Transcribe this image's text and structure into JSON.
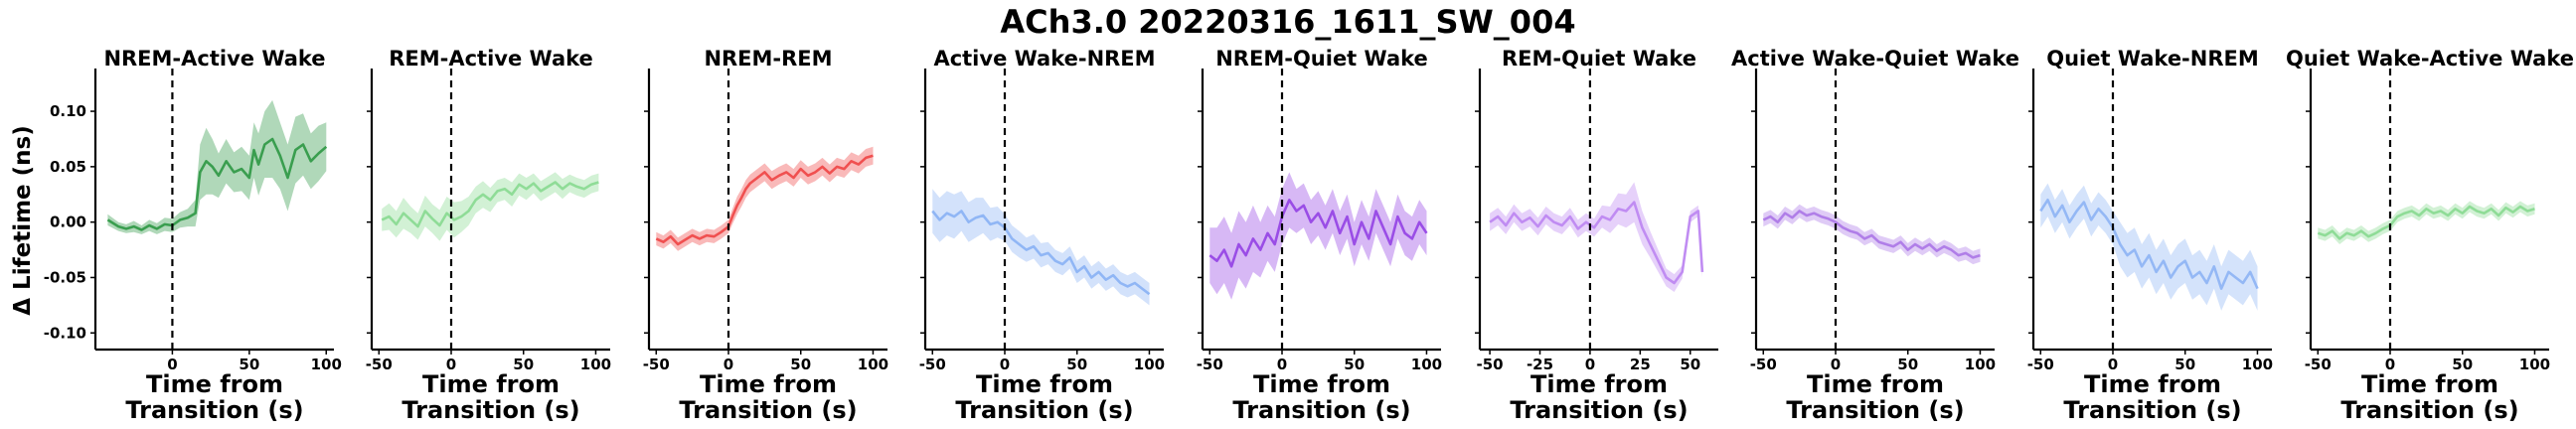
{
  "figure": {
    "suptitle": "ACh3.0 20220316_1611_SW_004",
    "ylabel": "Δ Lifetime (ns)",
    "xlabel_line1": "Time from",
    "xlabel_line2": "Transition (s)"
  },
  "chart_data": [
    {
      "type": "line",
      "title": "NREM-Active Wake",
      "color": "#3a9e4f",
      "xlim": [
        -50,
        105
      ],
      "ylim": [
        -0.115,
        0.135
      ],
      "xticks": [
        "0",
        "50",
        "100"
      ],
      "yticks": [
        "0.10",
        "0.05",
        "0.00",
        "-0.05",
        "-0.10"
      ],
      "x": [
        -42,
        -35,
        -30,
        -25,
        -20,
        -15,
        -10,
        -5,
        0,
        5,
        10,
        15,
        18,
        22,
        26,
        30,
        35,
        40,
        45,
        50,
        53,
        56,
        60,
        65,
        70,
        75,
        80,
        85,
        90,
        95,
        100
      ],
      "mean": [
        0.002,
        -0.004,
        -0.006,
        -0.004,
        -0.007,
        -0.003,
        -0.006,
        -0.002,
        -0.003,
        0.002,
        0.004,
        0.008,
        0.045,
        0.055,
        0.05,
        0.042,
        0.055,
        0.045,
        0.048,
        0.04,
        0.065,
        0.052,
        0.07,
        0.075,
        0.06,
        0.04,
        0.065,
        0.07,
        0.055,
        0.062,
        0.068
      ],
      "err": [
        0.005,
        0.004,
        0.004,
        0.005,
        0.004,
        0.005,
        0.005,
        0.006,
        0.006,
        0.007,
        0.008,
        0.012,
        0.025,
        0.03,
        0.025,
        0.02,
        0.02,
        0.018,
        0.02,
        0.02,
        0.025,
        0.028,
        0.03,
        0.035,
        0.03,
        0.03,
        0.03,
        0.028,
        0.025,
        0.025,
        0.022
      ]
    },
    {
      "type": "line",
      "title": "REM-Active Wake",
      "color": "#8fdc97",
      "xlim": [
        -55,
        110
      ],
      "ylim": [
        -0.115,
        0.135
      ],
      "xticks": [
        "-50",
        "0",
        "50",
        "100"
      ],
      "yticks": [],
      "x": [
        -48,
        -43,
        -38,
        -33,
        -28,
        -23,
        -18,
        -13,
        -8,
        -3,
        2,
        7,
        12,
        17,
        22,
        27,
        32,
        37,
        42,
        47,
        52,
        57,
        62,
        67,
        72,
        77,
        82,
        87,
        92,
        97,
        102
      ],
      "mean": [
        0.002,
        0.005,
        -0.002,
        0.008,
        0.002,
        -0.004,
        0.01,
        0.003,
        -0.003,
        0.008,
        0.002,
        0.005,
        0.01,
        0.02,
        0.025,
        0.02,
        0.028,
        0.03,
        0.025,
        0.034,
        0.03,
        0.035,
        0.028,
        0.032,
        0.036,
        0.03,
        0.035,
        0.032,
        0.03,
        0.034,
        0.036
      ],
      "err": [
        0.01,
        0.012,
        0.012,
        0.014,
        0.012,
        0.012,
        0.014,
        0.013,
        0.014,
        0.015,
        0.016,
        0.014,
        0.013,
        0.012,
        0.012,
        0.011,
        0.01,
        0.01,
        0.011,
        0.01,
        0.01,
        0.009,
        0.009,
        0.009,
        0.009,
        0.009,
        0.008,
        0.008,
        0.008,
        0.008,
        0.008
      ]
    },
    {
      "type": "line",
      "title": "NREM-REM",
      "color": "#f05050",
      "xlim": [
        -55,
        110
      ],
      "ylim": [
        -0.115,
        0.135
      ],
      "xticks": [
        "-50",
        "0",
        "50",
        "100"
      ],
      "yticks": [],
      "x": [
        -50,
        -45,
        -40,
        -35,
        -30,
        -25,
        -20,
        -15,
        -10,
        -5,
        0,
        3,
        6,
        9,
        12,
        15,
        20,
        25,
        30,
        35,
        40,
        45,
        50,
        55,
        60,
        65,
        70,
        75,
        80,
        85,
        90,
        95,
        100
      ],
      "mean": [
        -0.015,
        -0.018,
        -0.013,
        -0.02,
        -0.016,
        -0.012,
        -0.015,
        -0.012,
        -0.013,
        -0.009,
        -0.004,
        0.006,
        0.015,
        0.022,
        0.03,
        0.035,
        0.04,
        0.045,
        0.038,
        0.042,
        0.045,
        0.04,
        0.048,
        0.042,
        0.045,
        0.05,
        0.044,
        0.05,
        0.048,
        0.055,
        0.052,
        0.058,
        0.06
      ],
      "err": [
        0.006,
        0.006,
        0.006,
        0.006,
        0.006,
        0.006,
        0.006,
        0.006,
        0.006,
        0.006,
        0.006,
        0.007,
        0.008,
        0.008,
        0.008,
        0.008,
        0.008,
        0.008,
        0.008,
        0.008,
        0.008,
        0.008,
        0.008,
        0.008,
        0.008,
        0.008,
        0.008,
        0.008,
        0.008,
        0.008,
        0.008,
        0.008,
        0.008
      ]
    },
    {
      "type": "line",
      "title": "Active Wake-NREM",
      "color": "#90b6f5",
      "xlim": [
        -55,
        110
      ],
      "ylim": [
        -0.115,
        0.135
      ],
      "xticks": [
        "-50",
        "0",
        "50",
        "100"
      ],
      "yticks": [],
      "x": [
        -50,
        -45,
        -40,
        -35,
        -30,
        -25,
        -20,
        -15,
        -10,
        -5,
        0,
        5,
        10,
        15,
        20,
        25,
        30,
        35,
        40,
        45,
        50,
        55,
        60,
        65,
        70,
        75,
        80,
        85,
        90,
        95,
        100
      ],
      "mean": [
        0.01,
        0.002,
        0.008,
        0.005,
        0.01,
        0.0,
        0.004,
        0.006,
        -0.002,
        0.0,
        -0.005,
        -0.015,
        -0.02,
        -0.025,
        -0.022,
        -0.03,
        -0.028,
        -0.035,
        -0.038,
        -0.032,
        -0.045,
        -0.04,
        -0.05,
        -0.045,
        -0.052,
        -0.048,
        -0.055,
        -0.058,
        -0.055,
        -0.06,
        -0.065
      ],
      "err": [
        0.02,
        0.02,
        0.02,
        0.02,
        0.018,
        0.018,
        0.018,
        0.016,
        0.015,
        0.014,
        0.012,
        0.012,
        0.012,
        0.011,
        0.011,
        0.011,
        0.01,
        0.01,
        0.01,
        0.01,
        0.01,
        0.01,
        0.01,
        0.01,
        0.01,
        0.01,
        0.01,
        0.01,
        0.01,
        0.01,
        0.01
      ]
    },
    {
      "type": "line",
      "title": "NREM-Quiet Wake",
      "color": "#9a4de6",
      "xlim": [
        -55,
        110
      ],
      "ylim": [
        -0.115,
        0.135
      ],
      "xticks": [
        "-50",
        "0",
        "50",
        "100"
      ],
      "yticks": [],
      "x": [
        -50,
        -45,
        -40,
        -35,
        -30,
        -25,
        -20,
        -15,
        -10,
        -5,
        0,
        5,
        10,
        15,
        20,
        25,
        30,
        35,
        40,
        45,
        50,
        55,
        60,
        65,
        70,
        75,
        80,
        85,
        90,
        95,
        100
      ],
      "mean": [
        -0.03,
        -0.035,
        -0.025,
        -0.04,
        -0.02,
        -0.03,
        -0.015,
        -0.025,
        -0.01,
        -0.02,
        0.005,
        0.02,
        0.01,
        0.015,
        0.0,
        0.008,
        -0.005,
        0.01,
        -0.01,
        0.005,
        -0.02,
        0.0,
        -0.015,
        0.01,
        -0.005,
        -0.02,
        0.005,
        -0.01,
        -0.015,
        0.0,
        -0.01
      ],
      "err": [
        0.025,
        0.03,
        0.03,
        0.03,
        0.03,
        0.03,
        0.03,
        0.025,
        0.025,
        0.025,
        0.025,
        0.025,
        0.02,
        0.02,
        0.02,
        0.02,
        0.02,
        0.02,
        0.02,
        0.02,
        0.02,
        0.02,
        0.02,
        0.02,
        0.02,
        0.02,
        0.02,
        0.02,
        0.02,
        0.02,
        0.02
      ]
    },
    {
      "type": "line",
      "title": "REM-Quiet Wake",
      "color": "#c08cf2",
      "xlim": [
        -55,
        64
      ],
      "ylim": [
        -0.115,
        0.135
      ],
      "xticks": [
        "-50",
        "-25",
        "0",
        "25",
        "50"
      ],
      "yticks": [],
      "x": [
        -50,
        -46,
        -42,
        -38,
        -34,
        -30,
        -26,
        -22,
        -18,
        -14,
        -10,
        -6,
        -2,
        2,
        6,
        10,
        14,
        18,
        22,
        26,
        30,
        34,
        38,
        42,
        46,
        50,
        54,
        56
      ],
      "mean": [
        0.0,
        0.005,
        -0.003,
        0.008,
        0.0,
        0.004,
        -0.004,
        0.006,
        0.0,
        -0.003,
        0.005,
        -0.006,
        0.0,
        -0.005,
        0.005,
        0.002,
        0.012,
        0.01,
        0.018,
        -0.005,
        -0.02,
        -0.035,
        -0.05,
        -0.055,
        -0.045,
        0.005,
        0.01,
        -0.045
      ],
      "err": [
        0.008,
        0.008,
        0.008,
        0.008,
        0.008,
        0.008,
        0.008,
        0.008,
        0.008,
        0.008,
        0.008,
        0.008,
        0.008,
        0.008,
        0.01,
        0.012,
        0.014,
        0.015,
        0.018,
        0.015,
        0.012,
        0.01,
        0.008,
        0.008,
        0.006,
        0.005,
        0.005,
        0.005
      ]
    },
    {
      "type": "line",
      "title": "Active Wake-Quiet Wake",
      "color": "#b07ee8",
      "xlim": [
        -55,
        110
      ],
      "ylim": [
        -0.115,
        0.135
      ],
      "xticks": [
        "-50",
        "0",
        "50",
        "100"
      ],
      "yticks": [],
      "x": [
        -50,
        -45,
        -40,
        -35,
        -30,
        -25,
        -20,
        -15,
        -10,
        -5,
        0,
        5,
        10,
        15,
        20,
        25,
        30,
        35,
        40,
        45,
        50,
        55,
        60,
        65,
        70,
        75,
        80,
        85,
        90,
        95,
        100
      ],
      "mean": [
        0.002,
        0.005,
        0.0,
        0.008,
        0.004,
        0.01,
        0.006,
        0.008,
        0.005,
        0.003,
        0.0,
        -0.005,
        -0.008,
        -0.01,
        -0.015,
        -0.012,
        -0.018,
        -0.02,
        -0.022,
        -0.018,
        -0.025,
        -0.02,
        -0.024,
        -0.02,
        -0.026,
        -0.022,
        -0.025,
        -0.03,
        -0.028,
        -0.032,
        -0.03
      ],
      "err": [
        0.006,
        0.006,
        0.006,
        0.006,
        0.006,
        0.006,
        0.006,
        0.006,
        0.006,
        0.006,
        0.006,
        0.006,
        0.006,
        0.006,
        0.006,
        0.006,
        0.006,
        0.006,
        0.006,
        0.006,
        0.006,
        0.006,
        0.006,
        0.006,
        0.006,
        0.006,
        0.006,
        0.006,
        0.006,
        0.006,
        0.006
      ]
    },
    {
      "type": "line",
      "title": "Quiet Wake-NREM",
      "color": "#94b8f5",
      "xlim": [
        -55,
        110
      ],
      "ylim": [
        -0.115,
        0.135
      ],
      "xticks": [
        "-50",
        "0",
        "50",
        "100"
      ],
      "yticks": [],
      "x": [
        -50,
        -45,
        -40,
        -35,
        -30,
        -25,
        -20,
        -15,
        -10,
        -5,
        0,
        5,
        10,
        15,
        20,
        25,
        30,
        35,
        40,
        45,
        50,
        55,
        60,
        65,
        70,
        75,
        80,
        85,
        90,
        95,
        100
      ],
      "mean": [
        0.01,
        0.02,
        0.005,
        0.015,
        0.0,
        0.01,
        0.018,
        0.002,
        0.012,
        0.005,
        -0.005,
        -0.02,
        -0.03,
        -0.025,
        -0.04,
        -0.03,
        -0.045,
        -0.035,
        -0.05,
        -0.04,
        -0.035,
        -0.05,
        -0.045,
        -0.055,
        -0.04,
        -0.06,
        -0.045,
        -0.05,
        -0.055,
        -0.045,
        -0.06
      ],
      "err": [
        0.015,
        0.015,
        0.015,
        0.015,
        0.015,
        0.015,
        0.015,
        0.015,
        0.015,
        0.015,
        0.015,
        0.02,
        0.02,
        0.02,
        0.02,
        0.02,
        0.02,
        0.02,
        0.02,
        0.02,
        0.02,
        0.02,
        0.02,
        0.02,
        0.02,
        0.02,
        0.02,
        0.02,
        0.02,
        0.02,
        0.02
      ]
    },
    {
      "type": "line",
      "title": "Quiet Wake-Active Wake",
      "color": "#8fdc97",
      "xlim": [
        -55,
        110
      ],
      "ylim": [
        -0.115,
        0.135
      ],
      "xticks": [
        "-50",
        "0",
        "50",
        "100"
      ],
      "yticks": [],
      "x": [
        -50,
        -45,
        -40,
        -35,
        -30,
        -25,
        -20,
        -15,
        -10,
        -5,
        0,
        5,
        10,
        15,
        20,
        25,
        30,
        35,
        40,
        45,
        50,
        55,
        60,
        65,
        70,
        75,
        80,
        85,
        90,
        95,
        100
      ],
      "mean": [
        -0.01,
        -0.012,
        -0.008,
        -0.015,
        -0.01,
        -0.012,
        -0.008,
        -0.013,
        -0.01,
        -0.006,
        -0.003,
        0.005,
        0.008,
        0.01,
        0.006,
        0.012,
        0.008,
        0.01,
        0.006,
        0.012,
        0.008,
        0.014,
        0.01,
        0.008,
        0.012,
        0.006,
        0.013,
        0.009,
        0.014,
        0.01,
        0.012
      ],
      "err": [
        0.005,
        0.005,
        0.005,
        0.005,
        0.005,
        0.005,
        0.005,
        0.005,
        0.005,
        0.005,
        0.005,
        0.005,
        0.005,
        0.005,
        0.005,
        0.005,
        0.005,
        0.005,
        0.005,
        0.005,
        0.005,
        0.005,
        0.005,
        0.005,
        0.005,
        0.005,
        0.005,
        0.005,
        0.005,
        0.005,
        0.005
      ]
    }
  ]
}
